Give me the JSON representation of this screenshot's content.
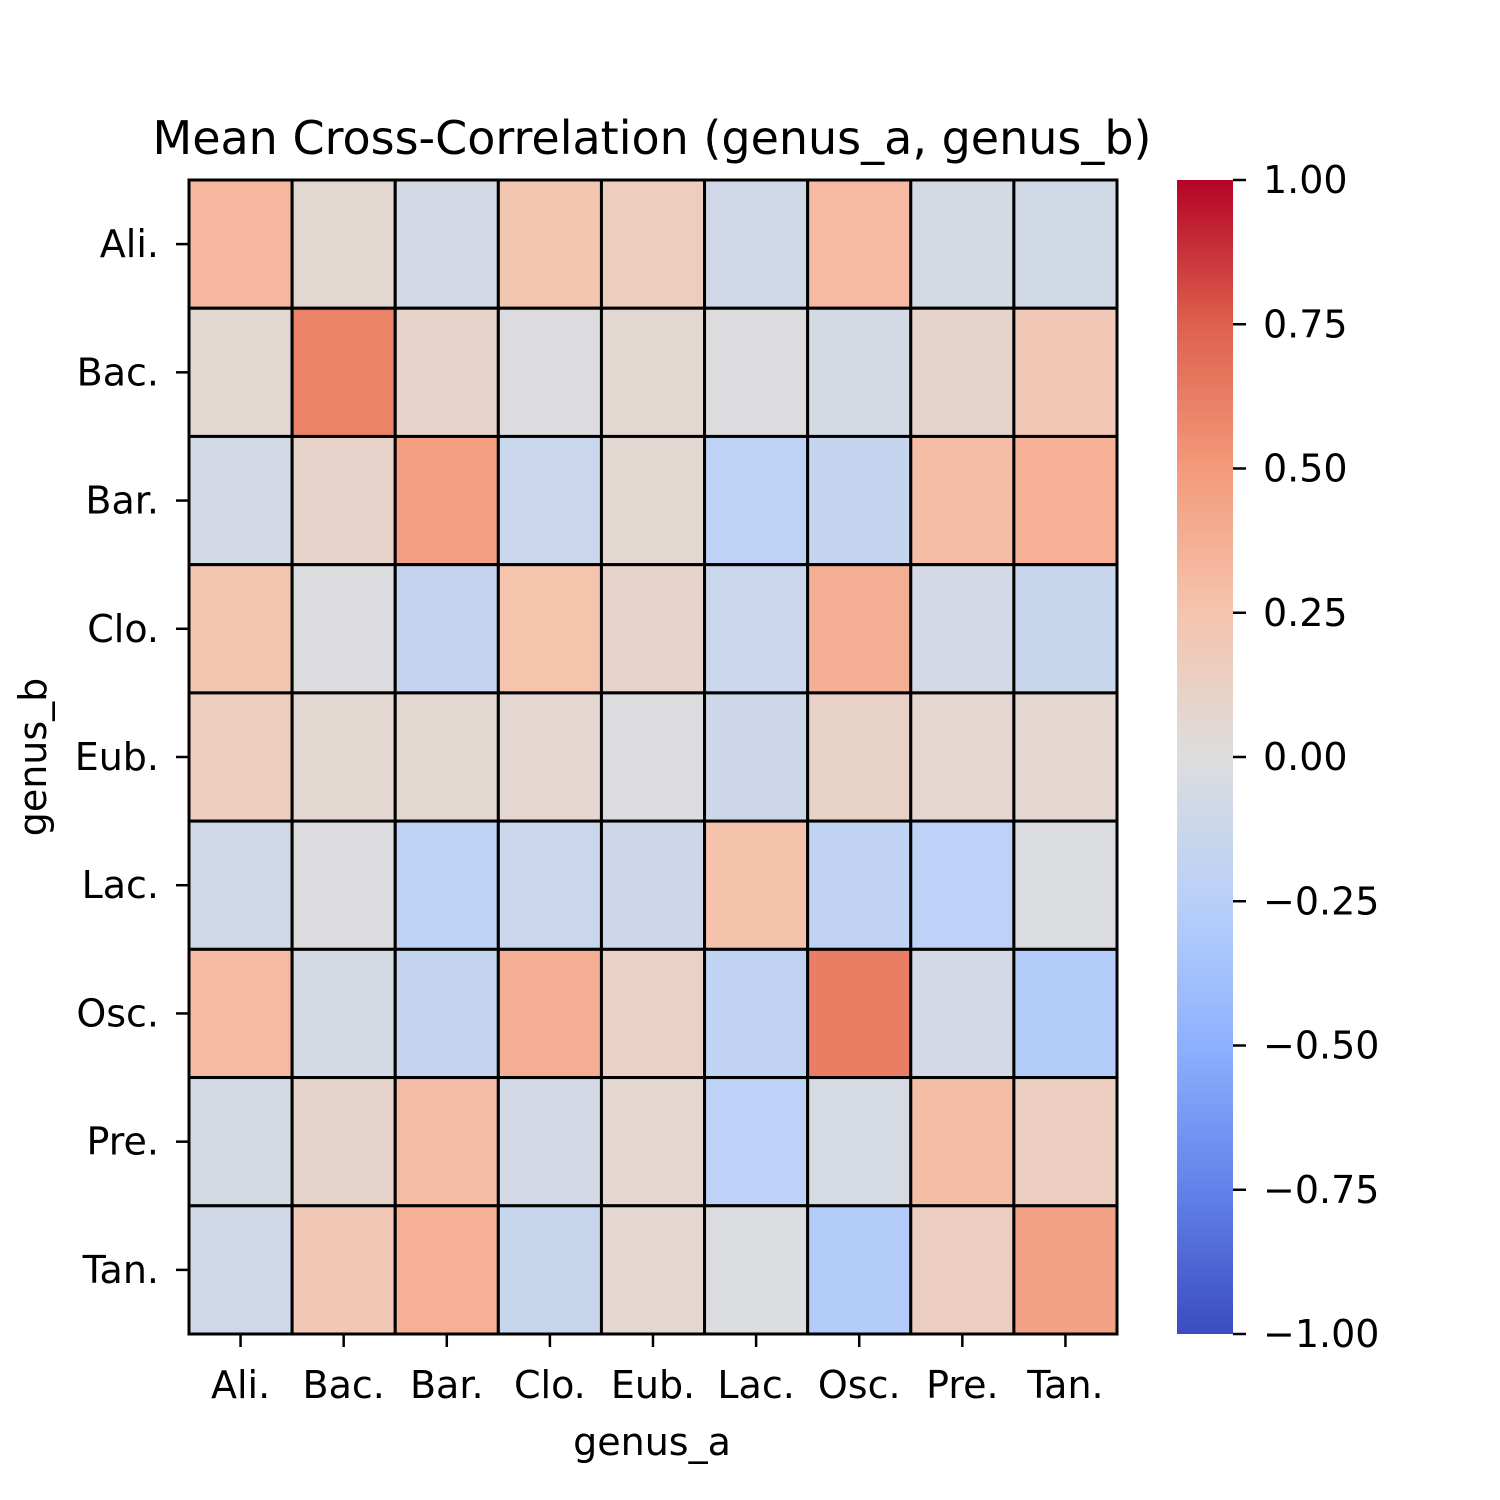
{
  "chart_data": {
    "type": "heatmap",
    "title": "Mean Cross-Correlation (genus_a, genus_b)",
    "xlabel": "genus_a",
    "ylabel": "genus_b",
    "x_categories": [
      "Ali.",
      "Bac.",
      "Bar.",
      "Clo.",
      "Eub.",
      "Lac.",
      "Osc.",
      "Pre.",
      "Tan."
    ],
    "y_categories": [
      "Ali.",
      "Bac.",
      "Bar.",
      "Clo.",
      "Eub.",
      "Lac.",
      "Osc.",
      "Pre.",
      "Tan."
    ],
    "values": [
      [
        0.32,
        0.06,
        -0.07,
        0.23,
        0.16,
        -0.09,
        0.31,
        -0.06,
        -0.08
      ],
      [
        0.06,
        0.6,
        0.1,
        -0.01,
        0.06,
        -0.01,
        -0.06,
        0.09,
        0.21
      ],
      [
        -0.07,
        0.1,
        0.47,
        -0.13,
        0.06,
        -0.21,
        -0.16,
        0.29,
        0.37
      ],
      [
        0.23,
        -0.01,
        -0.16,
        0.25,
        0.1,
        -0.13,
        0.38,
        -0.07,
        -0.14
      ],
      [
        0.16,
        0.06,
        0.06,
        0.07,
        -0.01,
        -0.11,
        0.11,
        0.07,
        0.07
      ],
      [
        -0.09,
        -0.01,
        -0.21,
        -0.13,
        -0.11,
        0.26,
        -0.19,
        -0.22,
        -0.02
      ],
      [
        0.31,
        -0.06,
        -0.16,
        0.38,
        0.12,
        -0.19,
        0.62,
        -0.07,
        -0.28
      ],
      [
        -0.06,
        0.09,
        0.29,
        -0.07,
        0.07,
        -0.22,
        -0.05,
        0.29,
        0.15
      ],
      [
        -0.09,
        0.21,
        0.37,
        -0.14,
        0.07,
        -0.02,
        -0.28,
        0.15,
        0.45
      ]
    ],
    "colormap": "coolwarm",
    "colorbar": {
      "range": [
        -1.0,
        1.0
      ],
      "ticks": [
        1.0,
        0.75,
        0.5,
        0.25,
        0.0,
        -0.25,
        -0.5,
        -0.75,
        -1.0
      ],
      "tick_labels": [
        "1.00",
        "0.75",
        "0.50",
        "0.25",
        "0.00",
        "−0.25",
        "−0.50",
        "−0.75",
        "−1.00"
      ]
    },
    "cell_border_color": "#000000"
  }
}
